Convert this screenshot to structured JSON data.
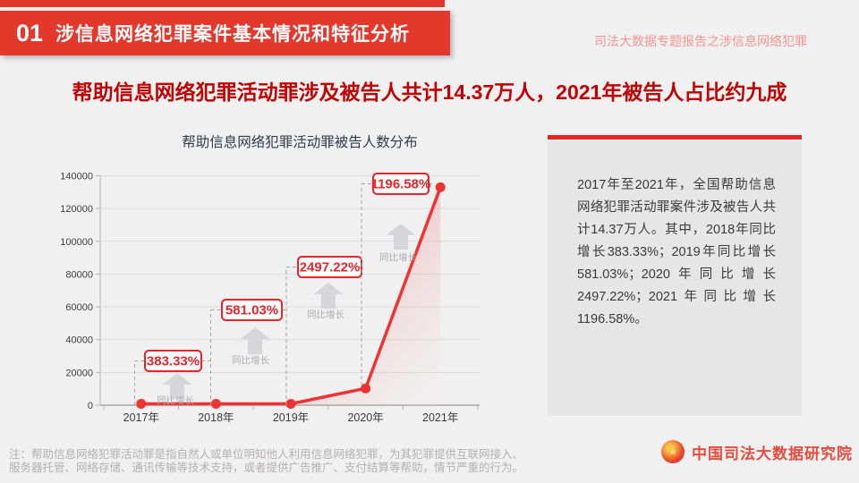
{
  "header": {
    "badge": "01",
    "title": "涉信息网络犯罪案件基本情况和特征分析",
    "report_tag": "司法大数据专题报告之涉信息网络犯罪"
  },
  "headline": "帮助信息网络犯罪活动罪涉及被告人共计14.37万人，2021年被告人占比约九成",
  "chart_data": {
    "type": "line",
    "title": "帮助信息网络犯罪活动罪被告人数分布",
    "categories": [
      "2017年",
      "2018年",
      "2019年",
      "2020年",
      "2021年"
    ],
    "values": [
      12,
      58,
      395,
      10255,
      132976
    ],
    "ylim": [
      0,
      140000
    ],
    "ytick_step": 20000,
    "yticks": [
      0,
      20000,
      40000,
      60000,
      80000,
      100000,
      120000,
      140000
    ],
    "grid": true,
    "legend": "none",
    "line_color": "#ee3331",
    "annotation_color": "#e6242c",
    "annotations": [
      {
        "year": "2018年",
        "label": "383.33%",
        "caption": "同比增长"
      },
      {
        "year": "2019年",
        "label": "581.03%",
        "caption": "同比增长"
      },
      {
        "year": "2020年",
        "label": "2497.22%",
        "caption": "同比增长"
      },
      {
        "year": "2021年",
        "label": "1196.58%",
        "caption": "同比增长"
      }
    ]
  },
  "sidebar": {
    "text": "2017年至2021年，全国帮助信息网络犯罪活动罪案件涉及被告人共计14.37万人。其中，2018年同比增长383.33%；2019年同比增长581.03%；2020年同比增长2497.22%；2021年同比增长1196.58%。"
  },
  "footer": {
    "note_line1": "注：帮助信息网络犯罪活动罪是指自然人或单位明知他人利用信息网络犯罪，为其犯罪提供互联网接入、",
    "note_line2": "服务器托管、网络存储、通讯传输等技术支持，或者提供广告推广、支付结算等帮助，情节严重的行为。",
    "emblem_glyph": "★",
    "logo_text": "中国司法大数据研究院"
  },
  "colors": {
    "banner_red": "#e5382c",
    "headline_red": "#c00000",
    "panel_bar_red": "#e82420",
    "panel_gray": "#e6e6e7",
    "page_bg": "#f0f0f1",
    "logo_red": "#e84a3e",
    "tag_pink": "#f2968f"
  }
}
